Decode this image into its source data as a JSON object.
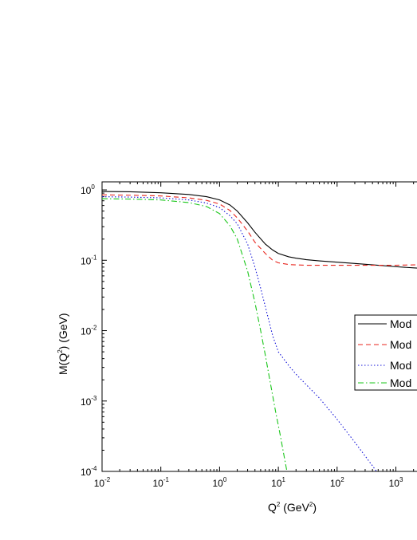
{
  "chart_data": {
    "type": "line",
    "xlabel": "Q2 (GeV2)",
    "ylabel": "M(Q2) (GeV)",
    "x_scale": "log",
    "y_scale": "log",
    "xlim": [
      0.01,
      5000
    ],
    "ylim": [
      0.0001,
      1.3
    ],
    "x_ticks": [
      0.01,
      0.1,
      1,
      10,
      100,
      1000
    ],
    "y_ticks": [
      0.0001,
      0.001,
      0.01,
      0.1,
      1
    ],
    "x_tick_labels": [
      {
        "base": "10",
        "exp": "-2"
      },
      {
        "base": "10",
        "exp": "-1"
      },
      {
        "base": "10",
        "exp": "0"
      },
      {
        "base": "10",
        "exp": "1"
      },
      {
        "base": "10",
        "exp": "2"
      },
      {
        "base": "10",
        "exp": "3"
      }
    ],
    "y_tick_labels": [
      {
        "base": "10",
        "exp": "-4"
      },
      {
        "base": "10",
        "exp": "-3"
      },
      {
        "base": "10",
        "exp": "-2"
      },
      {
        "base": "10",
        "exp": "-1"
      },
      {
        "base": "10",
        "exp": "0"
      }
    ],
    "grid": false,
    "legend_position": "right",
    "series": [
      {
        "name": "Mod",
        "color": "#000000",
        "dash": "solid",
        "x": [
          0.01,
          0.03,
          0.1,
          0.3,
          0.6,
          1,
          1.5,
          2,
          3,
          4,
          6,
          8,
          10,
          15,
          20,
          30,
          50,
          100,
          200,
          500,
          1000,
          2000,
          5000
        ],
        "y": [
          0.95,
          0.94,
          0.91,
          0.86,
          0.8,
          0.72,
          0.61,
          0.5,
          0.34,
          0.25,
          0.17,
          0.14,
          0.125,
          0.112,
          0.107,
          0.102,
          0.098,
          0.094,
          0.09,
          0.085,
          0.081,
          0.078,
          0.074
        ]
      },
      {
        "name": "Mod",
        "color": "#e8261e",
        "dash": "dashed",
        "x": [
          0.01,
          0.03,
          0.1,
          0.3,
          0.6,
          1,
          1.5,
          2,
          3,
          4,
          6,
          8,
          10,
          15,
          20,
          30,
          50,
          100,
          200,
          500,
          1000,
          2000,
          5000
        ],
        "y": [
          0.85,
          0.84,
          0.82,
          0.77,
          0.71,
          0.63,
          0.51,
          0.4,
          0.26,
          0.18,
          0.125,
          0.1,
          0.092,
          0.087,
          0.086,
          0.085,
          0.085,
          0.085,
          0.085,
          0.085,
          0.085,
          0.086,
          0.086
        ]
      },
      {
        "name": "Mod",
        "color": "#1515d8",
        "dash": "dotted",
        "x": [
          0.01,
          0.03,
          0.1,
          0.3,
          0.6,
          1,
          1.5,
          2,
          3,
          4,
          5,
          6,
          8,
          10,
          15,
          20,
          30,
          50,
          100,
          200,
          400,
          470
        ],
        "y": [
          0.8,
          0.79,
          0.77,
          0.72,
          0.65,
          0.56,
          0.43,
          0.33,
          0.17,
          0.08,
          0.04,
          0.022,
          0.0085,
          0.005,
          0.0032,
          0.0024,
          0.0017,
          0.0011,
          0.00055,
          0.00026,
          0.00012,
          0.0001
        ]
      },
      {
        "name": "Mod",
        "color": "#19c619",
        "dash": "dashdot",
        "x": [
          0.01,
          0.03,
          0.1,
          0.3,
          0.6,
          1,
          1.5,
          2,
          3,
          4,
          5,
          6,
          7,
          8,
          9,
          10,
          11,
          12,
          13,
          14
        ],
        "y": [
          0.75,
          0.74,
          0.72,
          0.66,
          0.58,
          0.46,
          0.31,
          0.2,
          0.07,
          0.025,
          0.01,
          0.0045,
          0.0022,
          0.0012,
          0.0007,
          0.00045,
          0.0003,
          0.0002,
          0.00014,
          0.0001
        ]
      }
    ]
  }
}
